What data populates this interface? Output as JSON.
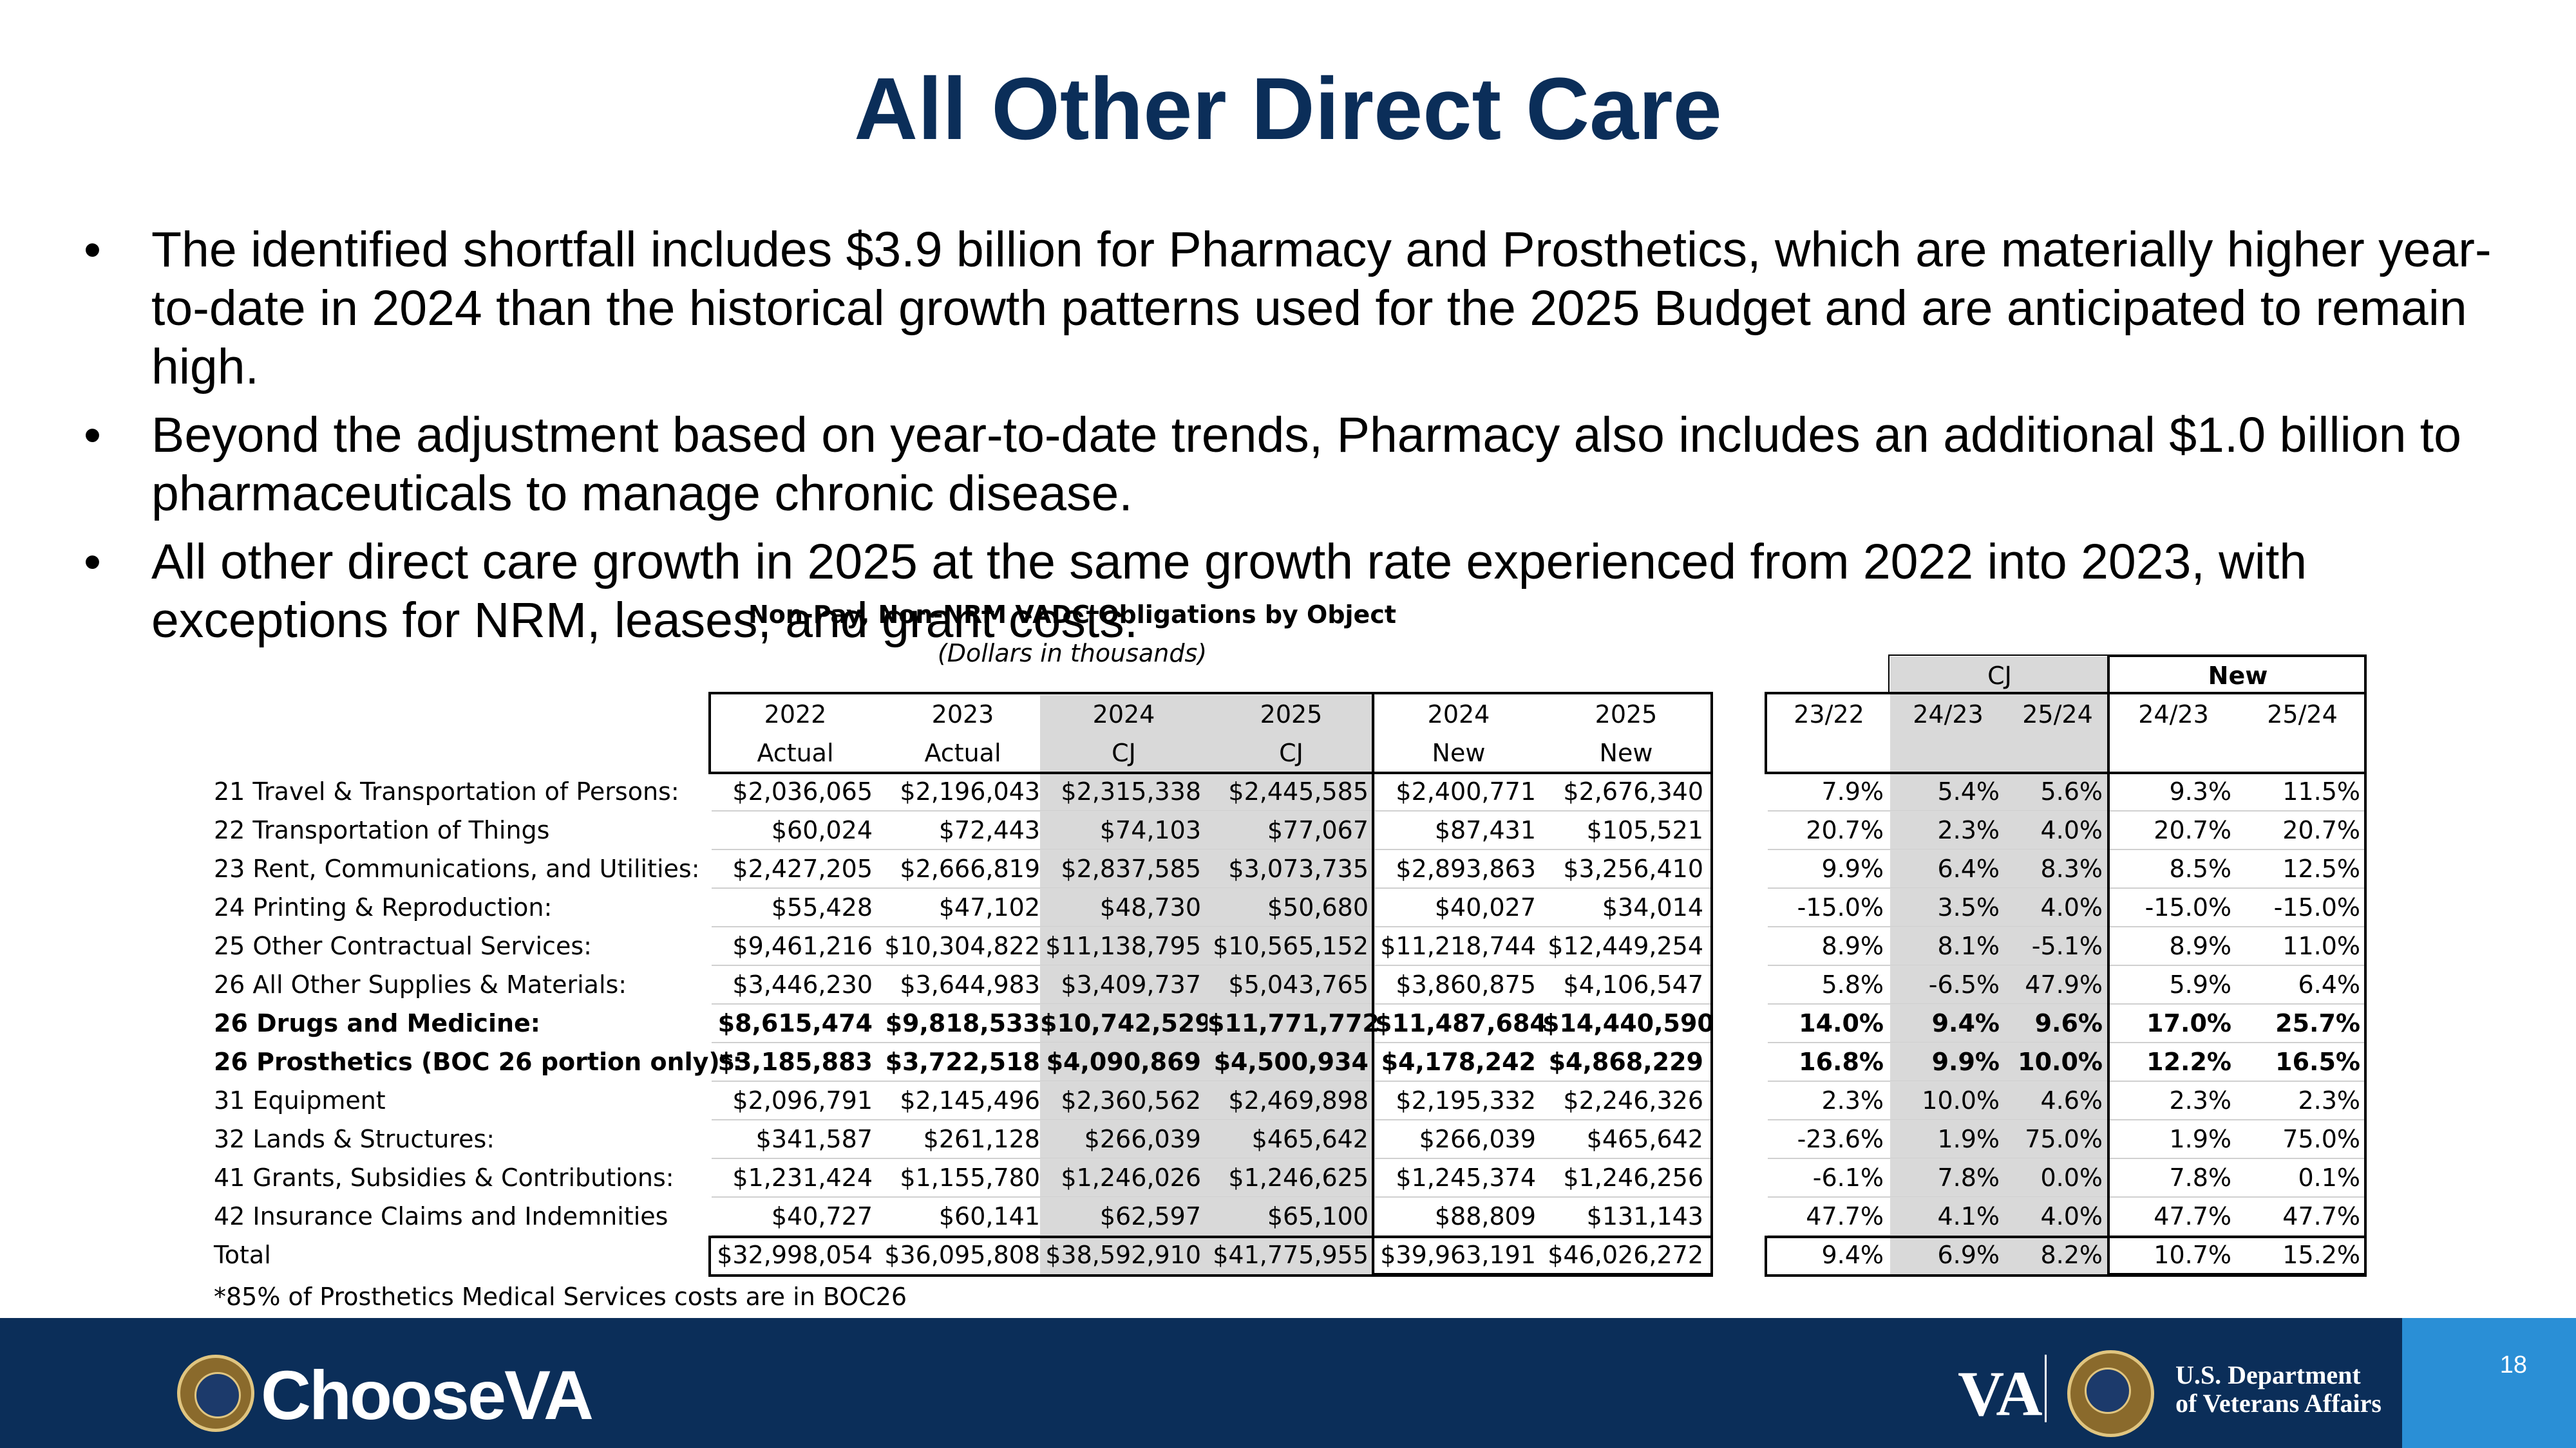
{
  "title": "All Other Direct Care",
  "bullets": [
    "The identified shortfall includes $3.9 billion for Pharmacy and Prosthetics, which are materially higher year-to-date in 2024 than the historical growth patterns used for the 2025 Budget and are anticipated to remain high.",
    "Beyond the adjustment based on year-to-date trends, Pharmacy also includes an additional $1.0 billion to pharmaceuticals to manage chronic disease.",
    "All other direct care growth in 2025 at the same growth rate experienced from 2022 into 2023, with exceptions for NRM, leases, and grant costs."
  ],
  "bullet_glyph": "•",
  "table": {
    "title": "Non-Pay, Non-NRM VADC Obligations by Object",
    "subtitle": "(Dollars in thousands)",
    "group_cj": "CJ",
    "group_new": "New",
    "col_years": [
      "2022",
      "2023",
      "2024",
      "2025",
      "2024",
      "2025"
    ],
    "col_types": [
      "Actual",
      "Actual",
      "CJ",
      "CJ",
      "New",
      "New"
    ],
    "pct_headers": [
      "23/22",
      "24/23",
      "25/24",
      "24/23",
      "25/24"
    ],
    "rows": [
      {
        "label": "21 Travel & Transportation of Persons:",
        "bold": false,
        "vals": [
          "$2,036,065",
          "$2,196,043",
          "$2,315,338",
          "$2,445,585",
          "$2,400,771",
          "$2,676,340"
        ],
        "pct": [
          "7.9%",
          "5.4%",
          "5.6%",
          "9.3%",
          "11.5%"
        ]
      },
      {
        "label": "22 Transportation of Things",
        "bold": false,
        "vals": [
          "$60,024",
          "$72,443",
          "$74,103",
          "$77,067",
          "$87,431",
          "$105,521"
        ],
        "pct": [
          "20.7%",
          "2.3%",
          "4.0%",
          "20.7%",
          "20.7%"
        ]
      },
      {
        "label": "23 Rent, Communications, and Utilities:",
        "bold": false,
        "vals": [
          "$2,427,205",
          "$2,666,819",
          "$2,837,585",
          "$3,073,735",
          "$2,893,863",
          "$3,256,410"
        ],
        "pct": [
          "9.9%",
          "6.4%",
          "8.3%",
          "8.5%",
          "12.5%"
        ]
      },
      {
        "label": "24 Printing & Reproduction:",
        "bold": false,
        "vals": [
          "$55,428",
          "$47,102",
          "$48,730",
          "$50,680",
          "$40,027",
          "$34,014"
        ],
        "pct": [
          "-15.0%",
          "3.5%",
          "4.0%",
          "-15.0%",
          "-15.0%"
        ]
      },
      {
        "label": "25 Other Contractual Services:",
        "bold": false,
        "vals": [
          "$9,461,216",
          "$10,304,822",
          "$11,138,795",
          "$10,565,152",
          "$11,218,744",
          "$12,449,254"
        ],
        "pct": [
          "8.9%",
          "8.1%",
          "-5.1%",
          "8.9%",
          "11.0%"
        ]
      },
      {
        "label": "26 All Other Supplies & Materials:",
        "bold": false,
        "vals": [
          "$3,446,230",
          "$3,644,983",
          "$3,409,737",
          "$5,043,765",
          "$3,860,875",
          "$4,106,547"
        ],
        "pct": [
          "5.8%",
          "-6.5%",
          "47.9%",
          "5.9%",
          "6.4%"
        ]
      },
      {
        "label": "26 Drugs and Medicine:",
        "bold": true,
        "vals": [
          "$8,615,474",
          "$9,818,533",
          "$10,742,529",
          "$11,771,772",
          "$11,487,684",
          "$14,440,590"
        ],
        "pct": [
          "14.0%",
          "9.4%",
          "9.6%",
          "17.0%",
          "25.7%"
        ]
      },
      {
        "label": "26 Prosthetics (BOC 26 portion only)*:",
        "bold": true,
        "vals": [
          "$3,185,883",
          "$3,722,518",
          "$4,090,869",
          "$4,500,934",
          "$4,178,242",
          "$4,868,229"
        ],
        "pct": [
          "16.8%",
          "9.9%",
          "10.0%",
          "12.2%",
          "16.5%"
        ]
      },
      {
        "label": "31 Equipment",
        "bold": false,
        "vals": [
          "$2,096,791",
          "$2,145,496",
          "$2,360,562",
          "$2,469,898",
          "$2,195,332",
          "$2,246,326"
        ],
        "pct": [
          "2.3%",
          "10.0%",
          "4.6%",
          "2.3%",
          "2.3%"
        ]
      },
      {
        "label": "32 Lands & Structures:",
        "bold": false,
        "vals": [
          "$341,587",
          "$261,128",
          "$266,039",
          "$465,642",
          "$266,039",
          "$465,642"
        ],
        "pct": [
          "-23.6%",
          "1.9%",
          "75.0%",
          "1.9%",
          "75.0%"
        ]
      },
      {
        "label": "41 Grants, Subsidies & Contributions:",
        "bold": false,
        "vals": [
          "$1,231,424",
          "$1,155,780",
          "$1,246,026",
          "$1,246,625",
          "$1,245,374",
          "$1,246,256"
        ],
        "pct": [
          "-6.1%",
          "7.8%",
          "0.0%",
          "7.8%",
          "0.1%"
        ]
      },
      {
        "label": "42 Insurance Claims and Indemnities",
        "bold": false,
        "vals": [
          "$40,727",
          "$60,141",
          "$62,597",
          "$65,100",
          "$88,809",
          "$131,143"
        ],
        "pct": [
          "47.7%",
          "4.1%",
          "4.0%",
          "47.7%",
          "47.7%"
        ]
      },
      {
        "label": "Total",
        "bold": false,
        "vals": [
          "$32,998,054",
          "$36,095,808",
          "$38,592,910",
          "$41,775,955",
          "$39,963,191",
          "$46,026,272"
        ],
        "pct": [
          "9.4%",
          "6.9%",
          "8.2%",
          "10.7%",
          "15.2%"
        ]
      }
    ],
    "footnote": "*85% of Prosthetics Medical Services costs are in BOC26"
  },
  "footer": {
    "brand": "ChooseVA",
    "va_mark": "VA",
    "dept_line1": "U.S. Department",
    "dept_line2": "of Veterans Affairs",
    "page_number": "18"
  },
  "colors": {
    "title": "#0b2e59",
    "footer_bg": "#0b2e59",
    "page_tab": "#2a8fd6",
    "shaded": "#d9d9d9"
  },
  "icons": [
    "va-seal-icon",
    "va-seal-icon"
  ]
}
